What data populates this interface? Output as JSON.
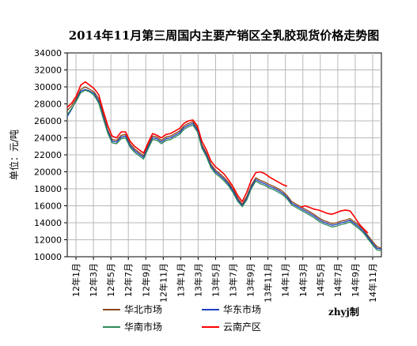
{
  "chart_data": {
    "type": "line",
    "title": "2014年11月第三周国内主要产销区全乳胶现货价格走势图",
    "ylabel": "单位：元/吨",
    "xlabel": "",
    "ylim": [
      10000,
      34000
    ],
    "yticks": [
      "34000",
      "32000",
      "30000",
      "28000",
      "26000",
      "24000",
      "22000",
      "20000",
      "18000",
      "16000",
      "14000",
      "12000",
      "10000"
    ],
    "x_ticks": [
      "12年1月",
      "12年3月",
      "12年5月",
      "12年7月",
      "12年9月",
      "12年11月",
      "13年1月",
      "13年3月",
      "13年5月",
      "13年7月",
      "13年9月",
      "13年11月",
      "14年1月",
      "14年3月",
      "14年5月",
      "14年7月",
      "14年9月",
      "14年11月"
    ],
    "grid": true,
    "legend_position": "bottom",
    "credit": "zhyj制",
    "series": [
      {
        "name": "华北市场",
        "color": "#8B4513",
        "values": [
          [
            0,
            27200
          ],
          [
            0.5,
            27800
          ],
          [
            1,
            28600
          ],
          [
            1.5,
            29700
          ],
          [
            2,
            30000
          ],
          [
            2.5,
            29700
          ],
          [
            3,
            29400
          ],
          [
            3.5,
            28600
          ],
          [
            4,
            26800
          ],
          [
            4.5,
            25000
          ],
          [
            5,
            23800
          ],
          [
            5.5,
            23700
          ],
          [
            6,
            24300
          ],
          [
            6.5,
            24400
          ],
          [
            7,
            23300
          ],
          [
            7.5,
            22700
          ],
          [
            8,
            22300
          ],
          [
            8.5,
            21900
          ],
          [
            9,
            23100
          ],
          [
            9.5,
            24200
          ],
          [
            10,
            24100
          ],
          [
            10.5,
            23700
          ],
          [
            11,
            24100
          ],
          [
            11.5,
            24200
          ],
          [
            12,
            24500
          ],
          [
            12.5,
            24800
          ],
          [
            13,
            25400
          ],
          [
            13.5,
            25700
          ],
          [
            14,
            25900
          ],
          [
            14.5,
            25100
          ],
          [
            15,
            23200
          ],
          [
            15.5,
            22200
          ],
          [
            16,
            20900
          ],
          [
            16.5,
            20200
          ],
          [
            17,
            19800
          ],
          [
            17.5,
            19300
          ],
          [
            18,
            18700
          ],
          [
            18.5,
            17900
          ],
          [
            19,
            16900
          ],
          [
            19.5,
            16200
          ],
          [
            20,
            17100
          ],
          [
            20.5,
            18400
          ],
          [
            21,
            19300
          ],
          [
            21.5,
            19000
          ],
          [
            22,
            18800
          ],
          [
            22.5,
            18500
          ],
          [
            23,
            18300
          ],
          [
            23.5,
            18000
          ],
          [
            24,
            17700
          ],
          [
            24.5,
            17200
          ],
          [
            25,
            16500
          ],
          [
            25.5,
            16200
          ],
          [
            26,
            15900
          ],
          [
            26.5,
            15600
          ],
          [
            27,
            15300
          ],
          [
            27.5,
            15000
          ],
          [
            28,
            14600
          ],
          [
            28.5,
            14300
          ],
          [
            29,
            14100
          ],
          [
            29.5,
            13900
          ],
          [
            30,
            14000
          ],
          [
            30.5,
            14200
          ],
          [
            31,
            14300
          ],
          [
            31.5,
            14500
          ],
          [
            32,
            14100
          ],
          [
            32.5,
            13700
          ],
          [
            33,
            13200
          ],
          [
            33.5,
            12500
          ],
          [
            34,
            11800
          ],
          [
            34.5,
            11200
          ],
          [
            35,
            11000
          ]
        ]
      },
      {
        "name": "华东市场",
        "color": "#1F3FBF",
        "values": [
          [
            0,
            26500
          ],
          [
            0.5,
            27400
          ],
          [
            1,
            28400
          ],
          [
            1.5,
            29500
          ],
          [
            2,
            29700
          ],
          [
            2.5,
            29500
          ],
          [
            3,
            29200
          ],
          [
            3.5,
            28300
          ],
          [
            4,
            26500
          ],
          [
            4.5,
            24800
          ],
          [
            5,
            23600
          ],
          [
            5.5,
            23500
          ],
          [
            6,
            24100
          ],
          [
            6.5,
            24200
          ],
          [
            7,
            23100
          ],
          [
            7.5,
            22500
          ],
          [
            8,
            22100
          ],
          [
            8.5,
            21700
          ],
          [
            9,
            22900
          ],
          [
            9.5,
            24000
          ],
          [
            10,
            23900
          ],
          [
            10.5,
            23500
          ],
          [
            11,
            23900
          ],
          [
            11.5,
            24000
          ],
          [
            12,
            24300
          ],
          [
            12.5,
            24600
          ],
          [
            13,
            25200
          ],
          [
            13.5,
            25500
          ],
          [
            14,
            25700
          ],
          [
            14.5,
            24900
          ],
          [
            15,
            23000
          ],
          [
            15.5,
            22000
          ],
          [
            16,
            20700
          ],
          [
            16.5,
            20000
          ],
          [
            17,
            19600
          ],
          [
            17.5,
            19100
          ],
          [
            18,
            18500
          ],
          [
            18.5,
            17700
          ],
          [
            19,
            16700
          ],
          [
            19.5,
            16000
          ],
          [
            20,
            16900
          ],
          [
            20.5,
            18200
          ],
          [
            21,
            19100
          ],
          [
            21.5,
            18800
          ],
          [
            22,
            18600
          ],
          [
            22.5,
            18300
          ],
          [
            23,
            18100
          ],
          [
            23.5,
            17800
          ],
          [
            24,
            17500
          ],
          [
            24.5,
            17000
          ],
          [
            25,
            16300
          ],
          [
            25.5,
            16000
          ],
          [
            26,
            15700
          ],
          [
            26.5,
            15400
          ],
          [
            27,
            15100
          ],
          [
            27.5,
            14800
          ],
          [
            28,
            14400
          ],
          [
            28.5,
            14100
          ],
          [
            29,
            13900
          ],
          [
            29.5,
            13700
          ],
          [
            30,
            13800
          ],
          [
            30.5,
            14000
          ],
          [
            31,
            14100
          ],
          [
            31.5,
            14300
          ],
          [
            32,
            13900
          ],
          [
            32.5,
            13500
          ],
          [
            33,
            13000
          ],
          [
            33.5,
            12300
          ],
          [
            34,
            11600
          ],
          [
            34.5,
            11000
          ],
          [
            35,
            10900
          ]
        ]
      },
      {
        "name": "华南市场",
        "color": "#2E8B57",
        "values": [
          [
            0,
            26700
          ],
          [
            0.5,
            27500
          ],
          [
            1,
            28300
          ],
          [
            1.5,
            29300
          ],
          [
            2,
            29600
          ],
          [
            2.5,
            29400
          ],
          [
            3,
            29000
          ],
          [
            3.5,
            28100
          ],
          [
            4,
            26300
          ],
          [
            4.5,
            24600
          ],
          [
            5,
            23400
          ],
          [
            5.5,
            23300
          ],
          [
            6,
            23900
          ],
          [
            6.5,
            24000
          ],
          [
            7,
            22900
          ],
          [
            7.5,
            22300
          ],
          [
            8,
            21900
          ],
          [
            8.5,
            21500
          ],
          [
            9,
            22700
          ],
          [
            9.5,
            23800
          ],
          [
            10,
            23700
          ],
          [
            10.5,
            23300
          ],
          [
            11,
            23700
          ],
          [
            11.5,
            23800
          ],
          [
            12,
            24100
          ],
          [
            12.5,
            24400
          ],
          [
            13,
            25000
          ],
          [
            13.5,
            25300
          ],
          [
            14,
            25500
          ],
          [
            14.5,
            24700
          ],
          [
            15,
            22800
          ],
          [
            15.5,
            21800
          ],
          [
            16,
            20500
          ],
          [
            16.5,
            19800
          ],
          [
            17,
            19400
          ],
          [
            17.5,
            18900
          ],
          [
            18,
            18300
          ],
          [
            18.5,
            17500
          ],
          [
            19,
            16500
          ],
          [
            19.5,
            15900
          ],
          [
            20,
            16700
          ],
          [
            20.5,
            18000
          ],
          [
            21,
            18900
          ],
          [
            21.5,
            18600
          ],
          [
            22,
            18400
          ],
          [
            22.5,
            18100
          ],
          [
            23,
            17900
          ],
          [
            23.5,
            17600
          ],
          [
            24,
            17300
          ],
          [
            24.5,
            16800
          ],
          [
            25,
            16100
          ],
          [
            25.5,
            15800
          ],
          [
            26,
            15500
          ],
          [
            26.5,
            15200
          ],
          [
            27,
            14900
          ],
          [
            27.5,
            14600
          ],
          [
            28,
            14200
          ],
          [
            28.5,
            13900
          ],
          [
            29,
            13700
          ],
          [
            29.5,
            13500
          ],
          [
            30,
            13600
          ],
          [
            30.5,
            13800
          ],
          [
            31,
            13900
          ],
          [
            31.5,
            14100
          ],
          [
            32,
            13700
          ],
          [
            32.5,
            13300
          ],
          [
            33,
            12800
          ],
          [
            33.5,
            12100
          ],
          [
            34,
            11400
          ],
          [
            34.5,
            10800
          ],
          [
            35,
            10700
          ]
        ]
      },
      {
        "name": "云南产区",
        "color": "#FF0000",
        "values": [
          [
            0,
            27600
          ],
          [
            0.5,
            28100
          ],
          [
            1,
            28900
          ],
          [
            1.5,
            30200
          ],
          [
            2,
            30600
          ],
          [
            2.5,
            30200
          ],
          [
            3,
            29800
          ],
          [
            3.5,
            29100
          ],
          [
            4,
            27200
          ],
          [
            4.5,
            25500
          ],
          [
            5,
            24200
          ],
          [
            5.5,
            24000
          ],
          [
            6,
            24700
          ],
          [
            6.5,
            24700
          ],
          [
            7,
            23600
          ],
          [
            7.5,
            23000
          ],
          [
            8,
            22600
          ],
          [
            8.5,
            22200
          ],
          [
            9,
            23400
          ],
          [
            9.5,
            24500
          ],
          [
            10,
            24300
          ],
          [
            10.5,
            24000
          ],
          [
            11,
            24400
          ],
          [
            11.5,
            24500
          ],
          [
            12,
            24800
          ],
          [
            12.5,
            25100
          ],
          [
            13,
            25700
          ],
          [
            13.5,
            26000
          ],
          [
            14,
            26100
          ],
          [
            14.5,
            25400
          ],
          [
            15,
            23600
          ],
          [
            15.5,
            22600
          ],
          [
            16,
            21300
          ],
          [
            16.5,
            20600
          ],
          [
            17,
            20200
          ],
          [
            17.5,
            19700
          ],
          [
            18,
            19000
          ],
          [
            18.5,
            18200
          ],
          [
            19,
            17200
          ],
          [
            19.5,
            16500
          ],
          [
            20,
            17600
          ],
          [
            20.5,
            19000
          ],
          [
            21,
            19900
          ],
          [
            21.5,
            20000
          ],
          [
            22,
            19800
          ],
          [
            22.5,
            19400
          ],
          [
            23,
            19100
          ],
          [
            23.5,
            18800
          ],
          [
            24,
            18500
          ],
          [
            24.5,
            18300
          ],
          [
            25,
            null
          ],
          [
            25.5,
            null
          ],
          [
            26,
            15800
          ],
          [
            26.5,
            16000
          ],
          [
            27,
            15800
          ],
          [
            27.5,
            15600
          ],
          [
            28,
            15500
          ],
          [
            28.5,
            15300
          ],
          [
            29,
            15100
          ],
          [
            29.5,
            15000
          ],
          [
            30,
            15200
          ],
          [
            30.5,
            15400
          ],
          [
            31,
            15500
          ],
          [
            31.5,
            15400
          ],
          [
            32,
            14700
          ],
          [
            32.5,
            13900
          ],
          [
            33,
            13300
          ],
          [
            33.5,
            12800
          ],
          [
            34,
            null
          ],
          [
            34.5,
            null
          ],
          [
            35,
            null
          ]
        ]
      }
    ]
  }
}
